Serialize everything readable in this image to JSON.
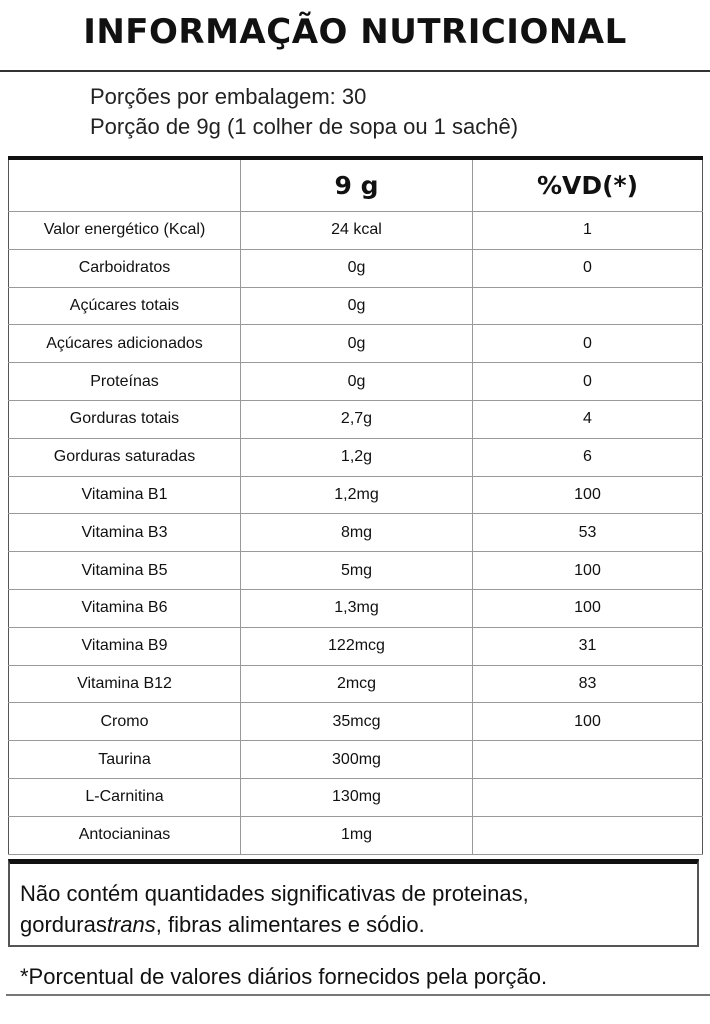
{
  "title": "INFORMAÇÃO NUTRICIONAL",
  "servings_per_package": "Porções por embalagem: 30",
  "serving_size": "Porção de 9g (1 colher de sopa ou 1 sachê)",
  "table": {
    "headers": [
      "",
      "9 g",
      "%VD(*)"
    ],
    "rows": [
      [
        "Valor energético (Kcal)",
        "24 kcal",
        "1"
      ],
      [
        "Carboidratos",
        "0g",
        "0"
      ],
      [
        "Açúcares totais",
        "0g",
        ""
      ],
      [
        "Açúcares adicionados",
        "0g",
        "0"
      ],
      [
        "Proteínas",
        "0g",
        "0"
      ],
      [
        "Gorduras totais",
        "2,7g",
        "4"
      ],
      [
        "Gorduras saturadas",
        "1,2g",
        "6"
      ],
      [
        "Vitamina B1",
        "1,2mg",
        "100"
      ],
      [
        "Vitamina B3",
        "8mg",
        "53"
      ],
      [
        "Vitamina B5",
        "5mg",
        "100"
      ],
      [
        "Vitamina B6",
        "1,3mg",
        "100"
      ],
      [
        "Vitamina B9",
        "122mcg",
        "31"
      ],
      [
        "Vitamina B12",
        "2mcg",
        "83"
      ],
      [
        "Cromo",
        "35mcg",
        "100"
      ],
      [
        "Taurina",
        "300mg",
        ""
      ],
      [
        "L-Carnitina",
        "130mg",
        ""
      ],
      [
        "Antocianinas",
        "1mg",
        ""
      ]
    ]
  },
  "note": {
    "line1": "Não contém quantidades significativas de proteinas,",
    "line2_before": "gorduras",
    "line2_italic": "trans",
    "line2_after": ", fibras alimentares e sódio."
  },
  "footnote": "*Porcentual de valores diários fornecidos pela porção."
}
